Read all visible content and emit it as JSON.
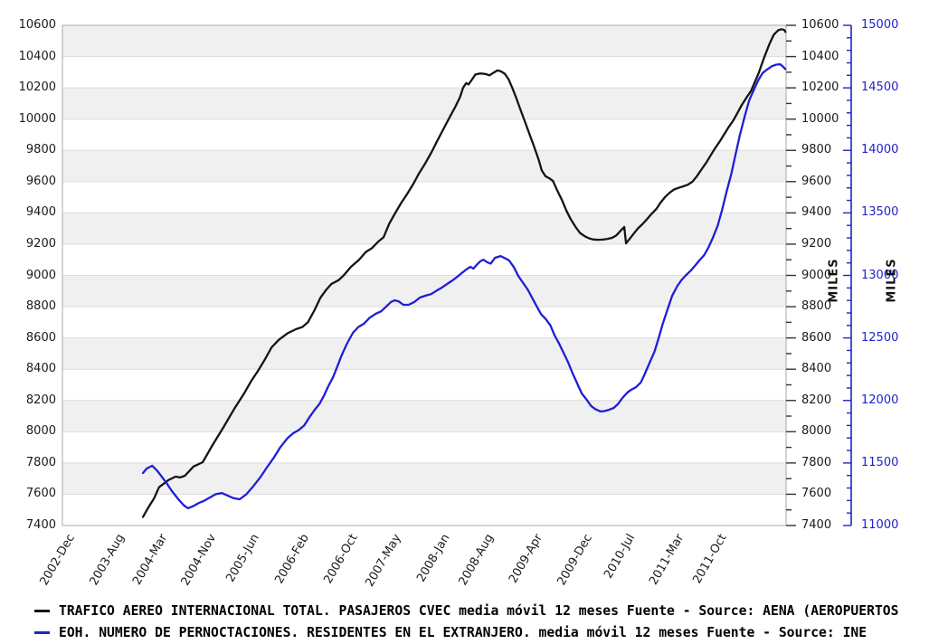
{
  "legend": {
    "items": [
      {
        "label": "TRAFICO AEREO INTERNACIONAL TOTAL. PASAJEROS CVEC media móvil 12 meses  Fuente - Source: AENA (AEROPUERTOS",
        "color": "#141414"
      },
      {
        "label": "EOH. NUMERO DE PERNOCTACIONES. RESIDENTES EN EL EXTRANJERO. media móvil 12 meses  Fuente - Source: INE",
        "color": "#2222cc"
      }
    ]
  },
  "colors": {
    "band": "#f0f0f0",
    "gridline": "#dcdcdc",
    "border": "#aaaaaa",
    "series_black": "#141414",
    "series_blue": "#1e1ed8",
    "axis_blue": "#2222cc",
    "label_black": "#1a1a1a"
  },
  "chart_data": {
    "type": "line",
    "title": "",
    "x_tick_labels": [
      "2002-Dec",
      "2003-Aug",
      "2004-Mar",
      "2004-Nov",
      "2005-Jun",
      "2006-Feb",
      "2006-Oct",
      "2007-May",
      "2008-Jan",
      "2008-Aug",
      "2009-Apr",
      "2009-Dec",
      "2010-Jul",
      "2011-Mar",
      "2011-Oct"
    ],
    "x_tick_months": [
      0,
      8,
      15,
      23,
      30,
      38,
      46,
      53,
      61,
      68,
      76,
      84,
      91,
      99,
      106
    ],
    "x_range_months": [
      0,
      117.6
    ],
    "grid": "horizontal-bands",
    "legend_position": "bottom",
    "axes": {
      "left": {
        "min": 7400,
        "max": 10600,
        "step": 200,
        "ticks": [
          10600,
          10400,
          10200,
          10000,
          9800,
          9600,
          9400,
          9200,
          9000,
          8800,
          8600,
          8400,
          8200,
          8000,
          7800,
          7600,
          7400
        ]
      },
      "right": {
        "min": 7400,
        "max": 10600,
        "step": 200,
        "minor": 100,
        "title": "MILES",
        "ticks": [
          10600,
          10400,
          10200,
          10000,
          9800,
          9600,
          9400,
          9200,
          9000,
          8800,
          8600,
          8400,
          8200,
          8000,
          7800,
          7600,
          7400
        ]
      },
      "right2": {
        "min": 11000,
        "max": 15000,
        "step": 500,
        "minor": 100,
        "title": "MILES",
        "color": "#2222cc",
        "ticks": [
          15000,
          14500,
          14000,
          13500,
          13000,
          12500,
          12000,
          11500,
          11000
        ]
      }
    },
    "series": [
      {
        "name": "TRAFICO AEREO INTERNACIONAL TOTAL. PASAJEROS CVEC media móvil 12 meses",
        "axis": "left",
        "color": "#141414",
        "points": [
          [
            13.1,
            7455
          ],
          [
            13.8,
            7505
          ],
          [
            14.9,
            7575
          ],
          [
            15.7,
            7645
          ],
          [
            17.2,
            7690
          ],
          [
            18.4,
            7713
          ],
          [
            19.1,
            7707
          ],
          [
            19.9,
            7718
          ],
          [
            21.3,
            7777
          ],
          [
            22.8,
            7805
          ],
          [
            24.4,
            7915
          ],
          [
            26.2,
            8030
          ],
          [
            27.9,
            8145
          ],
          [
            29.6,
            8250
          ],
          [
            30.7,
            8325
          ],
          [
            31.8,
            8390
          ],
          [
            32.8,
            8455
          ],
          [
            34.0,
            8540
          ],
          [
            35.2,
            8590
          ],
          [
            36.6,
            8630
          ],
          [
            37.9,
            8655
          ],
          [
            39.0,
            8670
          ],
          [
            39.9,
            8700
          ],
          [
            41.0,
            8780
          ],
          [
            41.9,
            8855
          ],
          [
            42.8,
            8905
          ],
          [
            43.7,
            8945
          ],
          [
            44.9,
            8970
          ],
          [
            45.7,
            9000
          ],
          [
            46.9,
            9055
          ],
          [
            48.2,
            9100
          ],
          [
            49.3,
            9150
          ],
          [
            50.3,
            9175
          ],
          [
            51.3,
            9215
          ],
          [
            52.2,
            9245
          ],
          [
            53.1,
            9330
          ],
          [
            54.1,
            9400
          ],
          [
            55.0,
            9460
          ],
          [
            56.0,
            9520
          ],
          [
            57.1,
            9590
          ],
          [
            57.9,
            9650
          ],
          [
            59.0,
            9720
          ],
          [
            60.0,
            9790
          ],
          [
            60.9,
            9860
          ],
          [
            61.9,
            9935
          ],
          [
            62.9,
            10010
          ],
          [
            63.8,
            10075
          ],
          [
            64.6,
            10140
          ],
          [
            65.1,
            10200
          ],
          [
            65.6,
            10230
          ],
          [
            66.0,
            10222
          ],
          [
            66.5,
            10250
          ],
          [
            67.1,
            10285
          ],
          [
            67.9,
            10292
          ],
          [
            68.8,
            10288
          ],
          [
            69.4,
            10280
          ],
          [
            70.1,
            10298
          ],
          [
            70.7,
            10312
          ],
          [
            71.3,
            10305
          ],
          [
            71.9,
            10290
          ],
          [
            72.5,
            10255
          ],
          [
            73.1,
            10200
          ],
          [
            73.7,
            10140
          ],
          [
            74.4,
            10065
          ],
          [
            75.1,
            9990
          ],
          [
            75.9,
            9905
          ],
          [
            76.6,
            9830
          ],
          [
            77.4,
            9740
          ],
          [
            77.9,
            9672
          ],
          [
            78.5,
            9635
          ],
          [
            79.1,
            9622
          ],
          [
            79.7,
            9605
          ],
          [
            80.4,
            9545
          ],
          [
            81.2,
            9480
          ],
          [
            81.9,
            9415
          ],
          [
            82.6,
            9360
          ],
          [
            83.4,
            9310
          ],
          [
            84.1,
            9272
          ],
          [
            84.9,
            9250
          ],
          [
            85.6,
            9237
          ],
          [
            86.3,
            9230
          ],
          [
            87.1,
            9228
          ],
          [
            87.8,
            9229
          ],
          [
            88.5,
            9233
          ],
          [
            89.3,
            9240
          ],
          [
            90.0,
            9255
          ],
          [
            90.7,
            9285
          ],
          [
            91.3,
            9310
          ],
          [
            91.6,
            9205
          ],
          [
            92.2,
            9235
          ],
          [
            92.8,
            9265
          ],
          [
            93.5,
            9300
          ],
          [
            94.3,
            9330
          ],
          [
            95.0,
            9360
          ],
          [
            95.7,
            9392
          ],
          [
            96.5,
            9425
          ],
          [
            97.2,
            9465
          ],
          [
            97.9,
            9500
          ],
          [
            98.7,
            9530
          ],
          [
            99.4,
            9550
          ],
          [
            100.1,
            9560
          ],
          [
            100.9,
            9570
          ],
          [
            101.6,
            9580
          ],
          [
            102.4,
            9600
          ],
          [
            103.1,
            9635
          ],
          [
            103.8,
            9675
          ],
          [
            104.6,
            9720
          ],
          [
            105.3,
            9765
          ],
          [
            106.0,
            9810
          ],
          [
            106.8,
            9855
          ],
          [
            107.5,
            9900
          ],
          [
            108.2,
            9945
          ],
          [
            109.0,
            9990
          ],
          [
            109.7,
            10040
          ],
          [
            110.4,
            10090
          ],
          [
            111.2,
            10140
          ],
          [
            111.9,
            10180
          ],
          [
            113.1,
            10290
          ],
          [
            114.0,
            10390
          ],
          [
            114.9,
            10480
          ],
          [
            115.6,
            10540
          ],
          [
            116.3,
            10568
          ],
          [
            116.9,
            10575
          ],
          [
            117.3,
            10570
          ],
          [
            117.5,
            10558
          ]
        ]
      },
      {
        "name": "EOH. NUMERO DE PERNOCTACIONES. RESIDENTES EN EL EXTRANJERO. media móvil 12 meses",
        "axis": "right2",
        "color": "#1e1ed8",
        "points": [
          [
            13.1,
            11420
          ],
          [
            13.7,
            11456
          ],
          [
            14.6,
            11478
          ],
          [
            15.4,
            11438
          ],
          [
            16.8,
            11348
          ],
          [
            17.8,
            11275
          ],
          [
            18.8,
            11213
          ],
          [
            19.7,
            11163
          ],
          [
            20.4,
            11138
          ],
          [
            21.3,
            11156
          ],
          [
            22.2,
            11181
          ],
          [
            23.1,
            11200
          ],
          [
            24.0,
            11225
          ],
          [
            24.9,
            11250
          ],
          [
            25.9,
            11260
          ],
          [
            26.9,
            11238
          ],
          [
            27.8,
            11219
          ],
          [
            28.8,
            11210
          ],
          [
            29.9,
            11250
          ],
          [
            31.0,
            11313
          ],
          [
            32.2,
            11388
          ],
          [
            33.2,
            11463
          ],
          [
            34.3,
            11538
          ],
          [
            35.4,
            11625
          ],
          [
            36.6,
            11700
          ],
          [
            37.5,
            11738
          ],
          [
            38.4,
            11763
          ],
          [
            39.3,
            11800
          ],
          [
            40.1,
            11863
          ],
          [
            41.0,
            11925
          ],
          [
            41.8,
            11975
          ],
          [
            42.5,
            12038
          ],
          [
            43.2,
            12113
          ],
          [
            44.0,
            12188
          ],
          [
            44.7,
            12275
          ],
          [
            45.4,
            12363
          ],
          [
            46.2,
            12450
          ],
          [
            47.2,
            12541
          ],
          [
            48.1,
            12588
          ],
          [
            49.0,
            12614
          ],
          [
            49.9,
            12661
          ],
          [
            50.9,
            12693
          ],
          [
            51.8,
            12713
          ],
          [
            52.6,
            12750
          ],
          [
            53.4,
            12788
          ],
          [
            54.0,
            12801
          ],
          [
            54.7,
            12791
          ],
          [
            55.4,
            12765
          ],
          [
            56.3,
            12766
          ],
          [
            57.2,
            12788
          ],
          [
            58.1,
            12823
          ],
          [
            59.0,
            12838
          ],
          [
            59.9,
            12850
          ],
          [
            60.7,
            12875
          ],
          [
            61.6,
            12900
          ],
          [
            62.5,
            12931
          ],
          [
            63.4,
            12960
          ],
          [
            64.3,
            12994
          ],
          [
            65.0,
            13023
          ],
          [
            65.7,
            13050
          ],
          [
            66.3,
            13069
          ],
          [
            66.8,
            13054
          ],
          [
            67.4,
            13088
          ],
          [
            67.9,
            13113
          ],
          [
            68.4,
            13126
          ],
          [
            69.0,
            13106
          ],
          [
            69.6,
            13094
          ],
          [
            70.3,
            13141
          ],
          [
            71.2,
            13155
          ],
          [
            71.9,
            13138
          ],
          [
            72.6,
            13119
          ],
          [
            73.4,
            13063
          ],
          [
            74.1,
            12994
          ],
          [
            74.9,
            12938
          ],
          [
            75.6,
            12888
          ],
          [
            76.3,
            12825
          ],
          [
            77.1,
            12750
          ],
          [
            77.8,
            12688
          ],
          [
            78.5,
            12654
          ],
          [
            79.3,
            12600
          ],
          [
            80.0,
            12519
          ],
          [
            80.7,
            12456
          ],
          [
            81.5,
            12375
          ],
          [
            82.2,
            12303
          ],
          [
            82.9,
            12219
          ],
          [
            83.7,
            12131
          ],
          [
            84.4,
            12056
          ],
          [
            85.1,
            12013
          ],
          [
            85.9,
            11956
          ],
          [
            86.6,
            11931
          ],
          [
            87.4,
            11913
          ],
          [
            88.1,
            11915
          ],
          [
            88.8,
            11925
          ],
          [
            89.6,
            11940
          ],
          [
            90.3,
            11973
          ],
          [
            91.0,
            12019
          ],
          [
            91.8,
            12063
          ],
          [
            92.5,
            12088
          ],
          [
            93.2,
            12106
          ],
          [
            94.0,
            12144
          ],
          [
            94.7,
            12219
          ],
          [
            95.4,
            12300
          ],
          [
            96.2,
            12388
          ],
          [
            96.9,
            12500
          ],
          [
            97.6,
            12619
          ],
          [
            98.4,
            12738
          ],
          [
            99.1,
            12838
          ],
          [
            99.9,
            12913
          ],
          [
            100.6,
            12963
          ],
          [
            101.3,
            13000
          ],
          [
            102.1,
            13038
          ],
          [
            102.8,
            13078
          ],
          [
            103.5,
            13119
          ],
          [
            104.3,
            13163
          ],
          [
            105.0,
            13225
          ],
          [
            105.7,
            13300
          ],
          [
            106.5,
            13400
          ],
          [
            107.2,
            13525
          ],
          [
            107.9,
            13663
          ],
          [
            108.7,
            13813
          ],
          [
            109.4,
            13969
          ],
          [
            110.1,
            14125
          ],
          [
            110.9,
            14275
          ],
          [
            111.6,
            14400
          ],
          [
            112.4,
            14488
          ],
          [
            113.1,
            14563
          ],
          [
            113.8,
            14619
          ],
          [
            114.6,
            14650
          ],
          [
            115.3,
            14673
          ],
          [
            116.0,
            14685
          ],
          [
            116.6,
            14689
          ],
          [
            117.0,
            14675
          ],
          [
            117.5,
            14650
          ]
        ]
      }
    ]
  }
}
